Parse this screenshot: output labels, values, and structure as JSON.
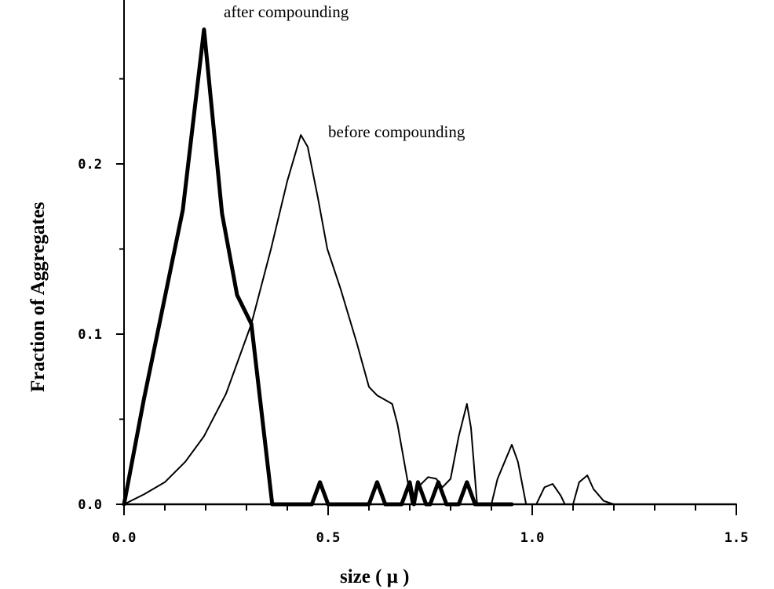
{
  "chart_data": {
    "type": "line",
    "title": "",
    "xlabel": "size ( μ )",
    "ylabel": "Fraction of Aggregates",
    "xlim": [
      0,
      1.5
    ],
    "ylim": [
      0,
      0.29
    ],
    "x_ticks": [
      "0.0",
      "0.5",
      "1.0",
      "1.5"
    ],
    "x_tick_values": [
      0,
      0.5,
      1.0,
      1.5
    ],
    "y_ticks": [
      "0.0",
      "0.1",
      "0.2"
    ],
    "y_tick_values": [
      0,
      0.1,
      0.2
    ],
    "grid": false,
    "annotations": [
      "after compounding",
      "before compounding"
    ],
    "series": [
      {
        "name": "after compounding",
        "style": "thick",
        "points": [
          [
            0,
            0
          ],
          [
            0.048,
            0.061
          ],
          [
            0.144,
            0.173
          ],
          [
            0.196,
            0.279
          ],
          [
            0.24,
            0.171
          ],
          [
            0.277,
            0.123
          ],
          [
            0.312,
            0.106
          ],
          [
            0.363,
            0
          ],
          [
            0.46,
            0
          ],
          [
            0.48,
            0.013
          ],
          [
            0.5,
            0
          ],
          [
            0.6,
            0
          ],
          [
            0.62,
            0.013
          ],
          [
            0.64,
            0
          ],
          [
            0.68,
            0
          ],
          [
            0.7,
            0.013
          ],
          [
            0.71,
            0
          ],
          [
            0.72,
            0.013
          ],
          [
            0.74,
            0
          ],
          [
            0.75,
            0
          ],
          [
            0.77,
            0.013
          ],
          [
            0.79,
            0
          ],
          [
            0.82,
            0
          ],
          [
            0.84,
            0.013
          ],
          [
            0.86,
            0
          ],
          [
            0.95,
            0
          ]
        ]
      },
      {
        "name": "before compounding",
        "style": "thin",
        "points": [
          [
            0,
            0
          ],
          [
            0.05,
            0.006
          ],
          [
            0.1,
            0.013
          ],
          [
            0.15,
            0.025
          ],
          [
            0.196,
            0.04
          ],
          [
            0.25,
            0.065
          ],
          [
            0.312,
            0.106
          ],
          [
            0.36,
            0.15
          ],
          [
            0.4,
            0.19
          ],
          [
            0.433,
            0.217
          ],
          [
            0.45,
            0.21
          ],
          [
            0.475,
            0.18
          ],
          [
            0.498,
            0.15
          ],
          [
            0.53,
            0.127
          ],
          [
            0.57,
            0.095
          ],
          [
            0.6,
            0.069
          ],
          [
            0.62,
            0.064
          ],
          [
            0.657,
            0.059
          ],
          [
            0.67,
            0.047
          ],
          [
            0.69,
            0.02
          ],
          [
            0.705,
            0
          ],
          [
            0.72,
            0.01
          ],
          [
            0.745,
            0.016
          ],
          [
            0.765,
            0.015
          ],
          [
            0.78,
            0.01
          ],
          [
            0.8,
            0.015
          ],
          [
            0.82,
            0.04
          ],
          [
            0.84,
            0.059
          ],
          [
            0.85,
            0.045
          ],
          [
            0.865,
            0
          ],
          [
            0.9,
            0
          ],
          [
            0.915,
            0.015
          ],
          [
            0.95,
            0.035
          ],
          [
            0.965,
            0.025
          ],
          [
            0.985,
            0
          ],
          [
            1.01,
            0
          ],
          [
            1.03,
            0.01
          ],
          [
            1.05,
            0.012
          ],
          [
            1.07,
            0.005
          ],
          [
            1.08,
            0
          ],
          [
            1.1,
            0
          ],
          [
            1.115,
            0.013
          ],
          [
            1.135,
            0.017
          ],
          [
            1.15,
            0.009
          ],
          [
            1.175,
            0.002
          ],
          [
            1.2,
            0
          ],
          [
            1.5,
            0
          ]
        ]
      }
    ]
  }
}
